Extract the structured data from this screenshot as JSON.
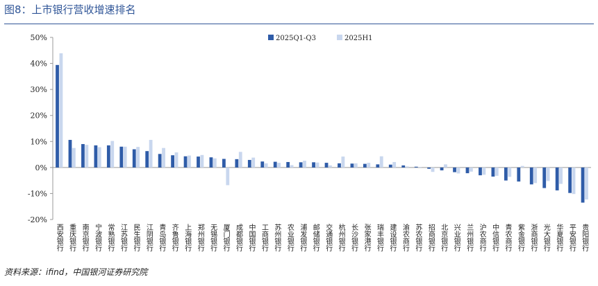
{
  "header": {
    "title": "图8：上市银行营收增速排名"
  },
  "footer": {
    "source": "资料来源：ifind，中国银河证券研究院"
  },
  "colors": {
    "series1": "#2f5ca8",
    "series2": "#c9d7ee",
    "accent": "#2f5597",
    "axis": "#999999"
  },
  "chart_data": {
    "type": "bar",
    "title": "",
    "xlabel": "",
    "ylabel": "",
    "ylim": [
      -20,
      50
    ],
    "yticks": [
      50,
      40,
      30,
      20,
      10,
      0,
      -10,
      -20
    ],
    "ytick_labels": [
      "50%",
      "40%",
      "30%",
      "20%",
      "10%",
      "0%",
      "-10%",
      "-20%"
    ],
    "legend_position": "top-center",
    "grid": false,
    "categories": [
      "西安银行",
      "重庆银行",
      "南京银行",
      "宁波银行",
      "常熟银行",
      "江苏银行",
      "民生银行",
      "江阴银行",
      "青岛银行",
      "齐鲁银行",
      "上海银行",
      "郑州银行",
      "无锡银行",
      "厦门银行",
      "成都银行",
      "中国银行",
      "工商银行",
      "苏州银行",
      "农业银行",
      "浦发银行",
      "邮储银行",
      "交通银行",
      "杭州银行",
      "长沙银行",
      "张家港行",
      "瑞丰银行",
      "建设银行",
      "渝农商行",
      "苏农银行",
      "招商银行",
      "北京银行",
      "兴业银行",
      "兰州银行",
      "沪农商行",
      "中信银行",
      "青农商行",
      "紫金银行",
      "浙商银行",
      "光大银行",
      "华夏银行",
      "平安银行",
      "贵阳银行"
    ],
    "series": [
      {
        "name": "2025Q1-Q3",
        "values": [
          39.4,
          10.6,
          9.0,
          8.5,
          8.5,
          8.0,
          7.0,
          6.3,
          5.2,
          4.7,
          4.3,
          4.2,
          3.9,
          3.3,
          3.2,
          2.9,
          2.3,
          2.2,
          2.1,
          2.0,
          2.0,
          1.8,
          1.6,
          1.5,
          1.4,
          1.2,
          1.1,
          0.8,
          0.3,
          -0.5,
          -1.1,
          -1.8,
          -2.2,
          -3.0,
          -3.5,
          -5.0,
          -5.4,
          -6.5,
          -7.9,
          -8.8,
          -9.8,
          -13.5
        ]
      },
      {
        "name": "2025H1",
        "values": [
          43.9,
          7.5,
          8.7,
          7.8,
          10.2,
          8.0,
          7.9,
          10.6,
          7.5,
          5.8,
          4.6,
          4.8,
          3.5,
          -6.8,
          6.0,
          3.8,
          1.6,
          1.8,
          0.9,
          2.6,
          1.9,
          0.8,
          4.2,
          1.6,
          1.8,
          4.3,
          2.1,
          0.4,
          0.2,
          -1.7,
          1.2,
          -2.3,
          -1.6,
          -2.8,
          -3.2,
          -3.6,
          0.6,
          -6.0,
          -5.2,
          -6.3,
          -10.2,
          -12.3
        ]
      }
    ]
  }
}
